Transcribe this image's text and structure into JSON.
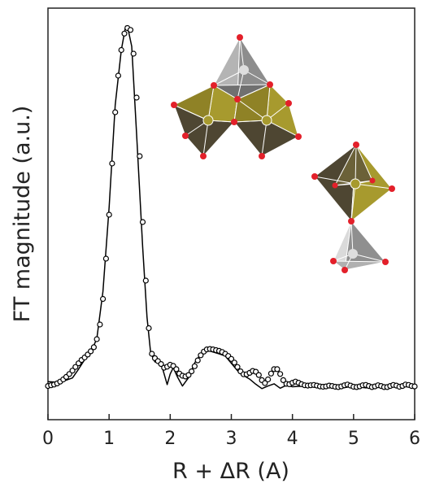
{
  "chart_data": {
    "type": "line",
    "title": "",
    "xlabel": "R + ΔR (A)",
    "ylabel": "FT magnitude (a.u.)",
    "xlim": [
      0,
      6
    ],
    "ylim": [
      0,
      1.0
    ],
    "xticks": [
      0,
      1,
      2,
      3,
      4,
      5,
      6
    ],
    "xtick_labels": [
      "0",
      "1",
      "2",
      "3",
      "4",
      "5",
      "6"
    ],
    "yticks_shown": false,
    "grid": false,
    "legend": "none",
    "series": [
      {
        "style": "line",
        "color": "#000000",
        "x": [
          0.0,
          0.2,
          0.4,
          0.5,
          0.6,
          0.7,
          0.8,
          0.9,
          1.0,
          1.1,
          1.2,
          1.27,
          1.32,
          1.37,
          1.45,
          1.55,
          1.62,
          1.68,
          1.75,
          1.85,
          1.95,
          2.0,
          2.05,
          2.12,
          2.2,
          2.3,
          2.4,
          2.5,
          2.6,
          2.7,
          2.8,
          2.9,
          3.0,
          3.1,
          3.2,
          3.3,
          3.4,
          3.5,
          3.6,
          3.7,
          3.8,
          3.9,
          4.0,
          4.2,
          4.4,
          4.6,
          4.8,
          5.0,
          5.2,
          5.4,
          5.6,
          5.8,
          6.0
        ],
        "y": [
          0.024,
          0.022,
          0.034,
          0.058,
          0.084,
          0.102,
          0.142,
          0.27,
          0.5,
          0.78,
          0.93,
          0.995,
          0.98,
          0.94,
          0.7,
          0.39,
          0.2,
          0.102,
          0.078,
          0.074,
          0.016,
          0.045,
          0.062,
          0.036,
          0.012,
          0.035,
          0.075,
          0.1,
          0.11,
          0.105,
          0.1,
          0.094,
          0.074,
          0.054,
          0.041,
          0.031,
          0.017,
          0.005,
          0.012,
          0.018,
          0.006,
          0.014,
          0.01,
          0.012,
          0.008,
          0.01,
          0.006,
          0.012,
          0.007,
          0.01,
          0.009,
          0.011,
          0.009
        ]
      },
      {
        "style": "markers",
        "marker": "open-circle",
        "color": "#000000",
        "x": [
          0.0,
          0.05,
          0.1,
          0.15,
          0.2,
          0.25,
          0.3,
          0.35,
          0.4,
          0.45,
          0.5,
          0.55,
          0.6,
          0.65,
          0.7,
          0.75,
          0.8,
          0.85,
          0.9,
          0.95,
          1.0,
          1.05,
          1.1,
          1.15,
          1.2,
          1.25,
          1.3,
          1.35,
          1.4,
          1.45,
          1.5,
          1.55,
          1.6,
          1.65,
          1.7,
          1.75,
          1.8,
          1.85,
          1.9,
          1.95,
          2.0,
          2.05,
          2.1,
          2.15,
          2.2,
          2.25,
          2.3,
          2.35,
          2.4,
          2.45,
          2.5,
          2.55,
          2.6,
          2.65,
          2.7,
          2.75,
          2.8,
          2.85,
          2.9,
          2.95,
          3.0,
          3.05,
          3.1,
          3.15,
          3.2,
          3.25,
          3.3,
          3.35,
          3.4,
          3.45,
          3.5,
          3.55,
          3.6,
          3.65,
          3.7,
          3.75,
          3.8,
          3.85,
          3.9,
          3.95,
          4.0,
          4.05,
          4.1,
          4.15,
          4.2,
          4.25,
          4.3,
          4.35,
          4.4,
          4.45,
          4.5,
          4.55,
          4.6,
          4.65,
          4.7,
          4.75,
          4.8,
          4.85,
          4.9,
          4.95,
          5.0,
          5.05,
          5.1,
          5.15,
          5.2,
          5.25,
          5.3,
          5.35,
          5.4,
          5.45,
          5.5,
          5.55,
          5.6,
          5.65,
          5.7,
          5.75,
          5.8,
          5.85,
          5.9,
          5.95,
          6.0
        ],
        "y": [
          0.012,
          0.014,
          0.016,
          0.019,
          0.024,
          0.03,
          0.037,
          0.045,
          0.054,
          0.064,
          0.074,
          0.083,
          0.09,
          0.098,
          0.107,
          0.118,
          0.14,
          0.18,
          0.25,
          0.36,
          0.48,
          0.62,
          0.76,
          0.86,
          0.93,
          0.975,
          0.99,
          0.985,
          0.92,
          0.8,
          0.64,
          0.46,
          0.3,
          0.17,
          0.1,
          0.088,
          0.08,
          0.072,
          0.062,
          0.065,
          0.07,
          0.067,
          0.058,
          0.046,
          0.04,
          0.038,
          0.042,
          0.052,
          0.066,
          0.082,
          0.096,
          0.106,
          0.112,
          0.113,
          0.112,
          0.11,
          0.108,
          0.105,
          0.1,
          0.094,
          0.086,
          0.076,
          0.064,
          0.052,
          0.044,
          0.044,
          0.048,
          0.053,
          0.051,
          0.042,
          0.028,
          0.02,
          0.03,
          0.046,
          0.058,
          0.058,
          0.045,
          0.028,
          0.018,
          0.017,
          0.021,
          0.024,
          0.021,
          0.017,
          0.014,
          0.013,
          0.014,
          0.015,
          0.013,
          0.011,
          0.01,
          0.011,
          0.013,
          0.012,
          0.01,
          0.009,
          0.011,
          0.014,
          0.016,
          0.013,
          0.01,
          0.009,
          0.011,
          0.014,
          0.015,
          0.012,
          0.009,
          0.011,
          0.014,
          0.012,
          0.009,
          0.009,
          0.012,
          0.015,
          0.013,
          0.01,
          0.012,
          0.016,
          0.015,
          0.012,
          0.011
        ]
      }
    ],
    "colors": {
      "axis": "#222222",
      "octahedron_light": "#a79a2e",
      "octahedron_dark": "#4e4632",
      "tetrahedron_light": "#c8c8c8",
      "tetrahedron_dark": "#8c8c8c",
      "oxygen_atom": "#e3202a"
    },
    "insets": [
      {
        "name": "edge-sharing-octahedra-with-tetrahedron",
        "shapes": [
          "tetrahedron",
          "octahedron",
          "octahedron"
        ]
      },
      {
        "name": "corner-sharing-octahedron-tetrahedron",
        "shapes": [
          "octahedron",
          "tetrahedron"
        ]
      }
    ]
  }
}
